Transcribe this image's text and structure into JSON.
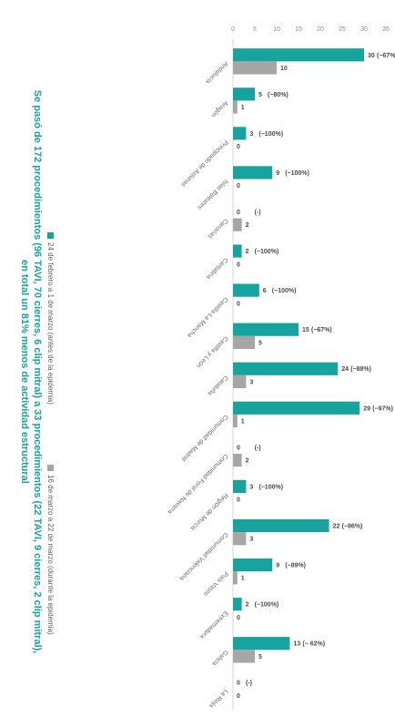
{
  "chart_data": {
    "type": "bar",
    "orientation": "horizontal",
    "categories": [
      "Andalucía",
      "Aragón",
      "Principado de Asturias",
      "Islas Baleares",
      "Canarias",
      "Cantabria",
      "Castilla-La Mancha",
      "Castilla y León",
      "Cataluña",
      "Comunidad de Madrid",
      "Comunidad Foral de Navarra",
      "Región de Murcia",
      "Comunidad Valenciana",
      "País Vasco",
      "Extremadura",
      "Galicia",
      "La Rioja"
    ],
    "series": [
      {
        "name": "24 de febrero a 1 de marzo (antes de la epidemia)",
        "color": "#17a39e",
        "values": [
          30,
          5,
          3,
          9,
          0,
          2,
          6,
          15,
          24,
          29,
          0,
          3,
          22,
          9,
          2,
          13,
          0
        ],
        "value_labels": [
          "30",
          "5",
          "3",
          "9",
          "0",
          "2",
          "6",
          "15",
          "24",
          "29",
          "0",
          "3",
          "22",
          "9",
          "2",
          "13",
          "0"
        ]
      },
      {
        "name": "16 de marzo a 22 de marzo (durante la epidemia)",
        "color": "#a6a6a6",
        "values": [
          10,
          1,
          0,
          0,
          2,
          0,
          0,
          5,
          3,
          1,
          2,
          0,
          3,
          1,
          0,
          5,
          0
        ],
        "value_labels": [
          "10",
          "1",
          "0",
          "0",
          "2",
          "0",
          "0",
          "5",
          "3",
          "1",
          "2",
          "0",
          "3",
          "1",
          "0",
          "5",
          "0"
        ]
      }
    ],
    "change_labels": [
      "(−67%)",
      "(−80%)",
      "(−100%)",
      "(−100%)",
      "(-)",
      "(−100%)",
      "(−100%)",
      "(−67%)",
      "(−88%)",
      "(−97%)",
      "(-)",
      "(−100%)",
      "(−86%)",
      "(−89%)",
      "(−100%)",
      "(− 62%)",
      "(-)"
    ],
    "value_axis": {
      "min": 0,
      "max": 35,
      "ticks": [
        0,
        5,
        10,
        15,
        20,
        25,
        30,
        35
      ]
    },
    "grid": false,
    "legend_position": "bottom",
    "caption_lines": [
      "Se pasó de 172 procedimientos (96 TAVI, 70 cierres, 6 clip mitral) a 33 procedimientos (22 TAVI, 9 cierres, 2 clip mitral),",
      "en total un 81% menos de actividad estructural"
    ]
  }
}
